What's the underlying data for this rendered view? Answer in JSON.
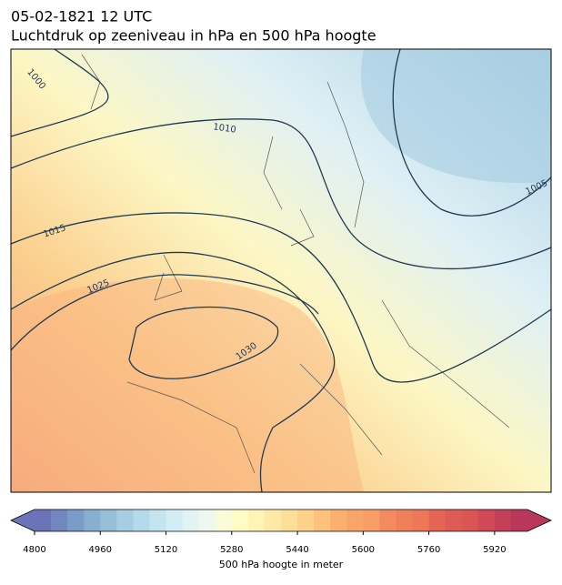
{
  "header": {
    "title": "05-02-1821 12 UTC",
    "subtitle": "Luchtdruk op zeeniveau in hPa en 500 hPa hoogte"
  },
  "map": {
    "contour_labels": [
      "1000",
      "1010",
      "1005",
      "1015",
      "1025",
      "1030"
    ]
  },
  "colorbar": {
    "label": "500 hPa hoogte in meter",
    "lim": [
      4800,
      6000
    ],
    "ticks": [
      4800,
      4960,
      5120,
      5280,
      5440,
      5600,
      5760,
      5920
    ],
    "colors": [
      "#6a74b6",
      "#7287bf",
      "#7b9bc8",
      "#88aed0",
      "#97bfd8",
      "#a6cde1",
      "#b5dae9",
      "#c4e4ef",
      "#d3edf4",
      "#e2f3f4",
      "#eff8ee",
      "#f9fbd9",
      "#fefbc5",
      "#fff3b5",
      "#feeaa6",
      "#fedf98",
      "#fdd18a",
      "#fcc17c",
      "#fbb070",
      "#f9a56a",
      "#f89e66",
      "#f48b5e",
      "#f08059",
      "#ee7758",
      "#e56555",
      "#de5c55",
      "#da5655",
      "#cf4a56",
      "#c43f58",
      "#b8375a"
    ]
  }
}
